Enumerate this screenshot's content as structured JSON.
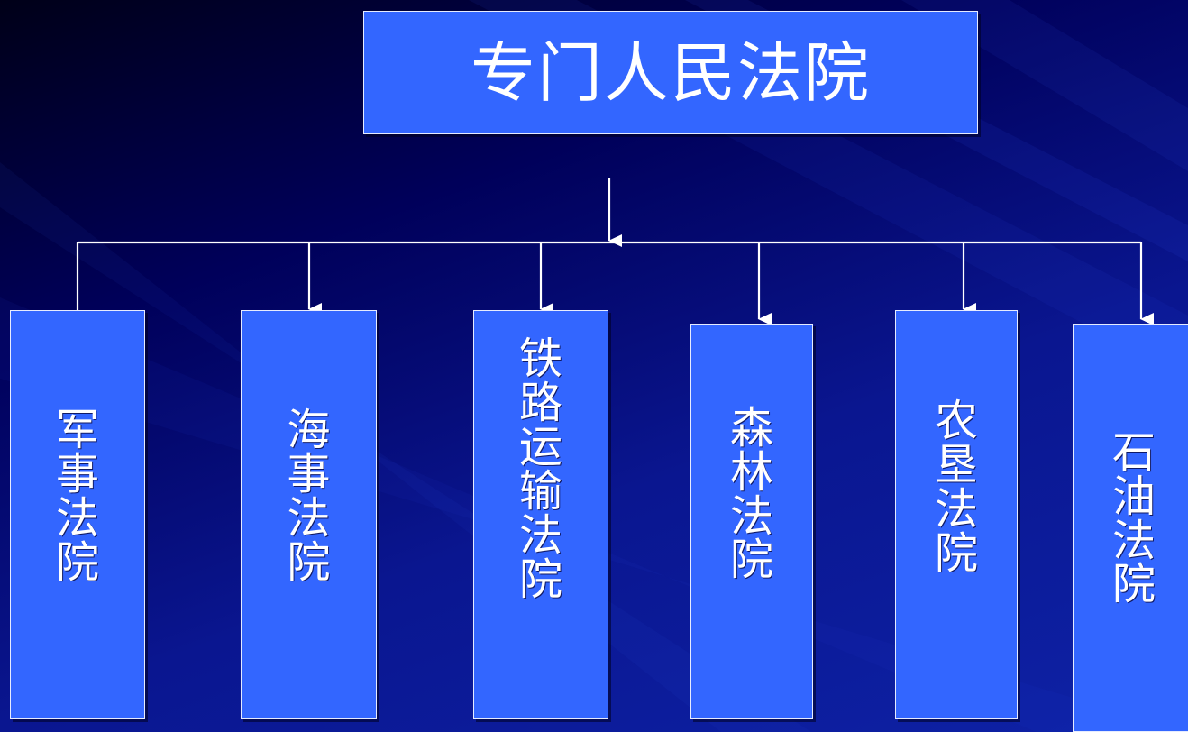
{
  "root": {
    "label": "专门人民法院"
  },
  "children": [
    {
      "label": "军事法院"
    },
    {
      "label": "海事法院"
    },
    {
      "label": "铁路运输法院"
    },
    {
      "label": "森林法院"
    },
    {
      "label": "农垦法院"
    },
    {
      "label": "石油法院"
    }
  ],
  "colors": {
    "box_fill": "#3366ff",
    "box_border": "#e6ecff",
    "connector": "#ffffff",
    "background": "#00005a"
  }
}
